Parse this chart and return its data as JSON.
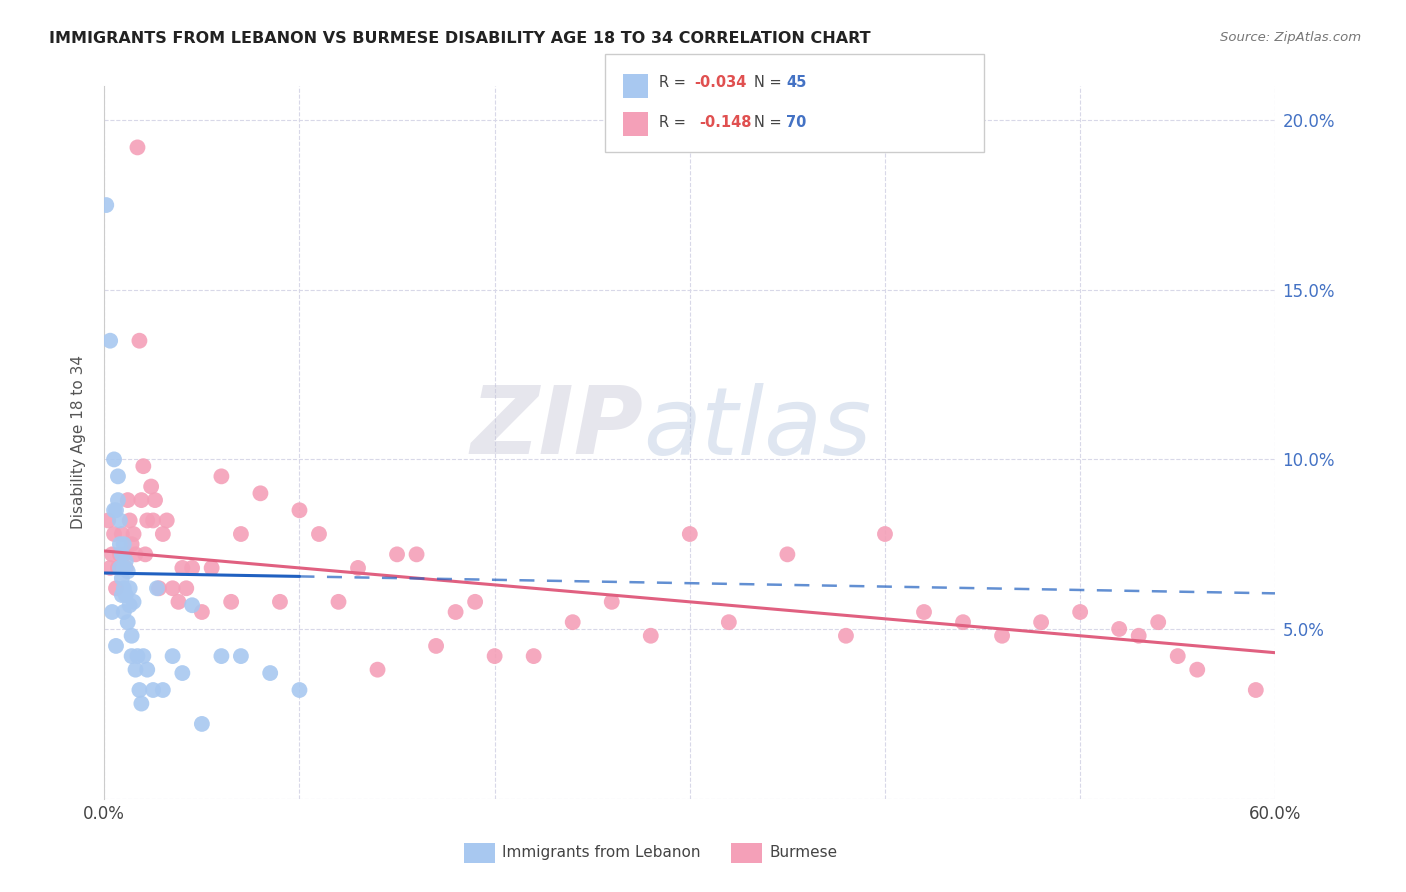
{
  "title": "IMMIGRANTS FROM LEBANON VS BURMESE DISABILITY AGE 18 TO 34 CORRELATION CHART",
  "source": "Source: ZipAtlas.com",
  "ylabel": "Disability Age 18 to 34",
  "x_min": 0.0,
  "x_max": 0.6,
  "y_min": 0.0,
  "y_max": 0.21,
  "lebanon_R": -0.034,
  "lebanon_N": 45,
  "burmese_R": -0.148,
  "burmese_N": 70,
  "lebanon_color": "#a8c8f0",
  "burmese_color": "#f4a0b8",
  "lebanon_line_color": "#2060c0",
  "burmese_line_color": "#e06080",
  "legend_label_1": "Immigrants from Lebanon",
  "legend_label_2": "Burmese",
  "watermark_zip": "ZIP",
  "watermark_atlas": "atlas",
  "background_color": "#ffffff",
  "grid_color": "#d8d8e8",
  "lebanon_line_start_y": 0.0665,
  "lebanon_line_end_y": 0.0605,
  "burmese_line_start_y": 0.073,
  "burmese_line_end_y": 0.043,
  "lebanon_x": [
    0.001,
    0.003,
    0.004,
    0.005,
    0.005,
    0.006,
    0.006,
    0.007,
    0.007,
    0.008,
    0.008,
    0.008,
    0.009,
    0.009,
    0.009,
    0.01,
    0.01,
    0.01,
    0.01,
    0.011,
    0.011,
    0.012,
    0.012,
    0.013,
    0.013,
    0.014,
    0.014,
    0.015,
    0.016,
    0.017,
    0.018,
    0.019,
    0.02,
    0.022,
    0.025,
    0.027,
    0.03,
    0.035,
    0.04,
    0.045,
    0.05,
    0.06,
    0.07,
    0.085,
    0.1
  ],
  "lebanon_y": [
    0.175,
    0.135,
    0.055,
    0.1,
    0.085,
    0.085,
    0.045,
    0.095,
    0.088,
    0.082,
    0.075,
    0.068,
    0.072,
    0.065,
    0.06,
    0.075,
    0.068,
    0.062,
    0.055,
    0.07,
    0.06,
    0.067,
    0.052,
    0.062,
    0.057,
    0.048,
    0.042,
    0.058,
    0.038,
    0.042,
    0.032,
    0.028,
    0.042,
    0.038,
    0.032,
    0.062,
    0.032,
    0.042,
    0.037,
    0.057,
    0.022,
    0.042,
    0.042,
    0.037,
    0.032
  ],
  "burmese_x": [
    0.002,
    0.003,
    0.004,
    0.005,
    0.006,
    0.007,
    0.008,
    0.009,
    0.01,
    0.011,
    0.012,
    0.013,
    0.014,
    0.015,
    0.016,
    0.017,
    0.018,
    0.019,
    0.02,
    0.021,
    0.022,
    0.024,
    0.025,
    0.026,
    0.028,
    0.03,
    0.032,
    0.035,
    0.038,
    0.04,
    0.042,
    0.045,
    0.05,
    0.055,
    0.06,
    0.065,
    0.07,
    0.08,
    0.09,
    0.1,
    0.11,
    0.12,
    0.13,
    0.14,
    0.15,
    0.16,
    0.17,
    0.18,
    0.19,
    0.2,
    0.22,
    0.24,
    0.26,
    0.28,
    0.3,
    0.32,
    0.35,
    0.38,
    0.4,
    0.42,
    0.44,
    0.46,
    0.48,
    0.5,
    0.52,
    0.53,
    0.54,
    0.55,
    0.56,
    0.59
  ],
  "burmese_y": [
    0.082,
    0.068,
    0.072,
    0.078,
    0.062,
    0.068,
    0.072,
    0.078,
    0.072,
    0.068,
    0.088,
    0.082,
    0.075,
    0.078,
    0.072,
    0.192,
    0.135,
    0.088,
    0.098,
    0.072,
    0.082,
    0.092,
    0.082,
    0.088,
    0.062,
    0.078,
    0.082,
    0.062,
    0.058,
    0.068,
    0.062,
    0.068,
    0.055,
    0.068,
    0.095,
    0.058,
    0.078,
    0.09,
    0.058,
    0.085,
    0.078,
    0.058,
    0.068,
    0.038,
    0.072,
    0.072,
    0.045,
    0.055,
    0.058,
    0.042,
    0.042,
    0.052,
    0.058,
    0.048,
    0.078,
    0.052,
    0.072,
    0.048,
    0.078,
    0.055,
    0.052,
    0.048,
    0.052,
    0.055,
    0.05,
    0.048,
    0.052,
    0.042,
    0.038,
    0.032
  ]
}
